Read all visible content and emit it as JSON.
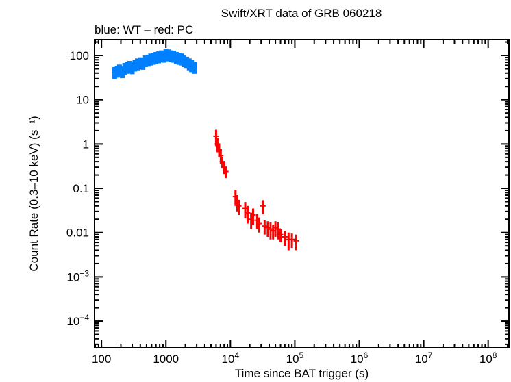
{
  "chart_data": {
    "type": "scatter",
    "title": "Swift/XRT data of GRB 060218",
    "subtitle": "blue: WT – red: PC",
    "xlabel": "Time since BAT trigger (s)",
    "ylabel": "Count Rate (0.3–10 keV) (s⁻¹)",
    "xscale": "log",
    "yscale": "log",
    "xlim": [
      78,
      210000000.0
    ],
    "ylim": [
      2.5e-05,
      227
    ],
    "xticks": [
      {
        "v": 100,
        "label": "100"
      },
      {
        "v": 1000,
        "label": "1000"
      },
      {
        "v": 10000.0,
        "base": "10",
        "exp": "4"
      },
      {
        "v": 100000.0,
        "base": "10",
        "exp": "5"
      },
      {
        "v": 1000000.0,
        "base": "10",
        "exp": "6"
      },
      {
        "v": 10000000.0,
        "base": "10",
        "exp": "7"
      },
      {
        "v": 100000000.0,
        "base": "10",
        "exp": "8"
      }
    ],
    "yticks": [
      {
        "v": 100,
        "label": "100"
      },
      {
        "v": 10,
        "label": "10"
      },
      {
        "v": 1,
        "label": "1"
      },
      {
        "v": 0.1,
        "label": "0.1"
      },
      {
        "v": 0.01,
        "label": "0.01"
      },
      {
        "v": 0.001,
        "base": "10",
        "exp": "−3"
      },
      {
        "v": 0.0001,
        "base": "10",
        "exp": "−4"
      }
    ],
    "grid": false,
    "series": [
      {
        "name": "WT",
        "color": "#0080ff",
        "x": [
          160,
          175,
          190,
          210,
          230,
          250,
          275,
          300,
          330,
          360,
          400,
          440,
          480,
          530,
          580,
          640,
          700,
          770,
          850,
          930,
          1000,
          1100,
          1200,
          1320,
          1450,
          1600,
          1750,
          1900,
          2100,
          2300,
          2500,
          2750
        ],
        "y": [
          42,
          45,
          48,
          44,
          52,
          55,
          58,
          54,
          62,
          66,
          70,
          68,
          78,
          80,
          85,
          88,
          92,
          95,
          100,
          98,
          110,
          105,
          100,
          98,
          92,
          88,
          85,
          78,
          72,
          66,
          60,
          55
        ],
        "yerr_frac": 0.3
      },
      {
        "name": "PC",
        "color": "#ff0000",
        "x": [
          6000,
          6300,
          6700,
          7100,
          7500,
          8000,
          8500,
          12000,
          12800,
          13500,
          17000,
          18500,
          21000,
          22500,
          26000,
          28000,
          32000,
          34000,
          38000,
          42000,
          46000,
          50000,
          55000,
          60000,
          70000,
          80000,
          90000,
          105000
        ],
        "y": [
          1.5,
          1.0,
          0.75,
          0.55,
          0.4,
          0.3,
          0.24,
          0.065,
          0.05,
          0.04,
          0.035,
          0.028,
          0.02,
          0.025,
          0.019,
          0.016,
          0.04,
          0.014,
          0.013,
          0.012,
          0.011,
          0.013,
          0.012,
          0.009,
          0.008,
          0.007,
          0.007,
          0.0065
        ],
        "yerr": [
          0.6,
          0.35,
          0.25,
          0.2,
          0.12,
          0.09,
          0.07,
          0.025,
          0.02,
          0.015,
          0.014,
          0.012,
          0.008,
          0.01,
          0.007,
          0.006,
          0.014,
          0.005,
          0.005,
          0.005,
          0.004,
          0.005,
          0.005,
          0.003,
          0.003,
          0.003,
          0.0025,
          0.0025
        ]
      }
    ]
  }
}
